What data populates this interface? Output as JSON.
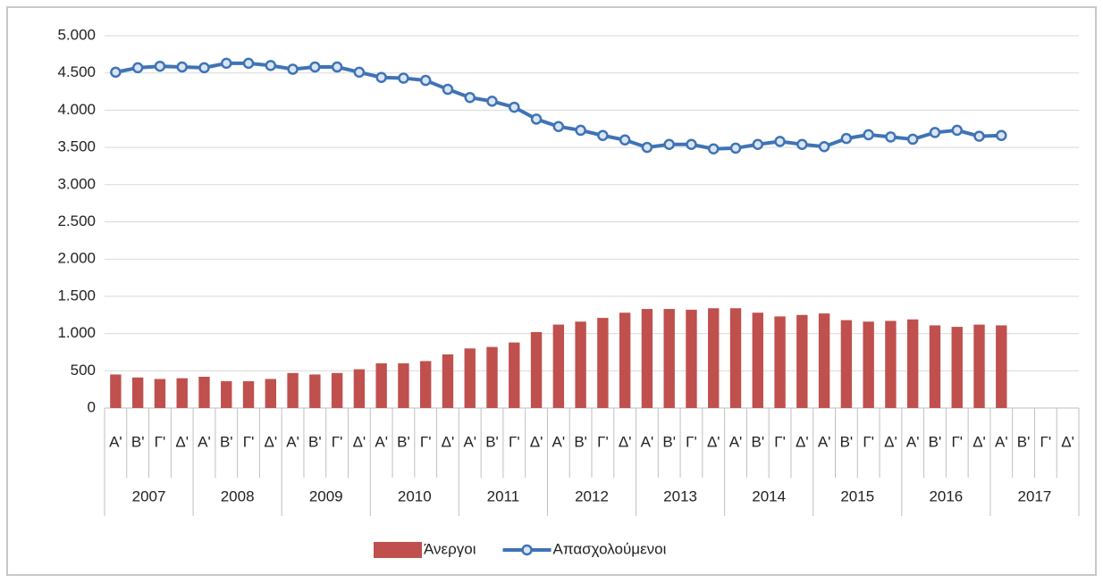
{
  "chart_data": {
    "type": "combo",
    "categories": [
      "Α'",
      "Β'",
      "Γ'",
      "Δ'",
      "Α'",
      "Β'",
      "Γ'",
      "Δ'",
      "Α'",
      "Β'",
      "Γ'",
      "Δ'",
      "Α'",
      "Β'",
      "Γ'",
      "Δ'",
      "Α'",
      "Β'",
      "Γ'",
      "Δ'",
      "Α'",
      "Β'",
      "Γ'",
      "Δ'",
      "Α'",
      "Β'",
      "Γ'",
      "Δ'",
      "Α'",
      "Β'",
      "Γ'",
      "Δ'",
      "Α'",
      "Β'",
      "Γ'",
      "Δ'",
      "Α'",
      "Β'",
      "Γ'",
      "Δ'",
      "Α'",
      "Β'",
      "Γ'",
      "Δ'"
    ],
    "years": [
      "2007",
      "2008",
      "2009",
      "2010",
      "2011",
      "2012",
      "2013",
      "2014",
      "2015",
      "2016",
      "2017"
    ],
    "series": [
      {
        "name": "Άνεργοι",
        "type": "bar",
        "color": "#c0504d",
        "values": [
          450,
          410,
          390,
          400,
          420,
          360,
          360,
          390,
          470,
          450,
          470,
          520,
          600,
          600,
          630,
          720,
          800,
          820,
          880,
          1020,
          1120,
          1160,
          1210,
          1280,
          1330,
          1330,
          1320,
          1340,
          1340,
          1280,
          1230,
          1250,
          1270,
          1180,
          1160,
          1170,
          1190,
          1110,
          1090,
          1120,
          1110,
          null,
          null,
          null
        ]
      },
      {
        "name": "Απασχολούμενοι",
        "type": "line",
        "color": "#3f73b5",
        "values": [
          4510,
          4570,
          4590,
          4580,
          4570,
          4630,
          4630,
          4600,
          4550,
          4580,
          4580,
          4510,
          4440,
          4430,
          4400,
          4280,
          4170,
          4120,
          4040,
          3880,
          3780,
          3730,
          3660,
          3600,
          3500,
          3540,
          3540,
          3480,
          3490,
          3540,
          3580,
          3540,
          3510,
          3620,
          3670,
          3640,
          3610,
          3700,
          3730,
          3650,
          3660,
          null,
          null,
          null
        ]
      }
    ],
    "ylim": [
      0,
      5000
    ],
    "yticks": [
      0,
      500,
      {
        "value": 1000,
        "label": "1.000"
      },
      {
        "value": 1500,
        "label": "1.500"
      },
      {
        "value": 2000,
        "label": "2.000"
      },
      {
        "value": 2500,
        "label": "2.500"
      },
      {
        "value": 3000,
        "label": "3.000"
      },
      {
        "value": 3500,
        "label": "3.500"
      },
      {
        "value": 4000,
        "label": "4.000"
      },
      {
        "value": 4500,
        "label": "4.500"
      },
      {
        "value": 5000,
        "label": "5.000"
      }
    ],
    "grid": true
  }
}
